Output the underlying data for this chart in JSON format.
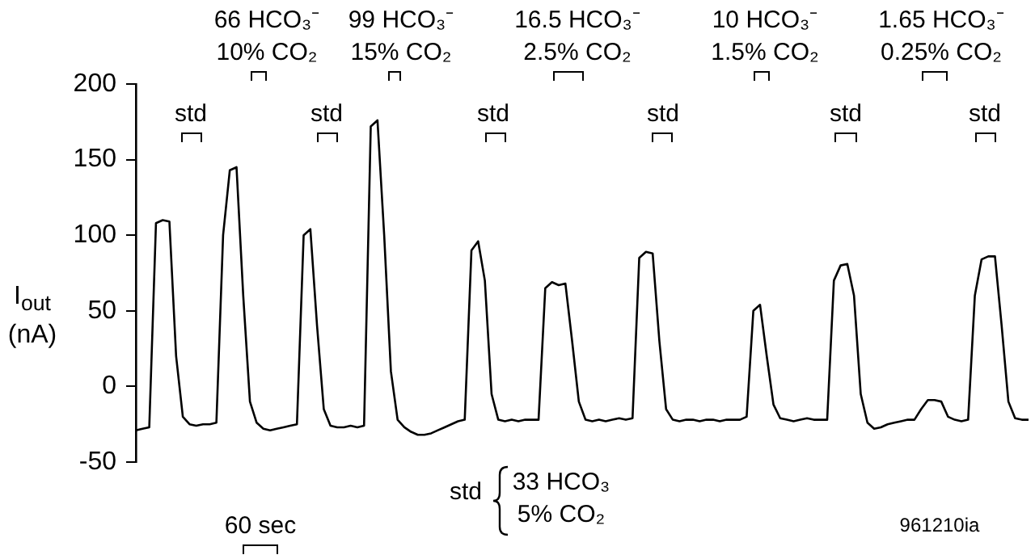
{
  "chart_data": {
    "type": "line",
    "ylabel": "I$_{out}$ (nA)",
    "categories": [
      null,
      null,
      null,
      null,
      null,
      null,
      null,
      null,
      null,
      null,
      null,
      null,
      null,
      null,
      null,
      null,
      null,
      null,
      null,
      null,
      null,
      null,
      null,
      null,
      null,
      null,
      null,
      null,
      null,
      null,
      null,
      null,
      null,
      null,
      null,
      null,
      null,
      null,
      null,
      null,
      null,
      null,
      null,
      null,
      null,
      null,
      null,
      null,
      null,
      null,
      null,
      null,
      null,
      null,
      null,
      null,
      null,
      null,
      null,
      null,
      null,
      null,
      null,
      null,
      null,
      null,
      null,
      null,
      null,
      null,
      null,
      null,
      null,
      null,
      null,
      null,
      null,
      null,
      null,
      null,
      null,
      null,
      null,
      null,
      null,
      null,
      null,
      null,
      null,
      null,
      null,
      null,
      null,
      null,
      null,
      null,
      null,
      null,
      null,
      null,
      null,
      null,
      null,
      null,
      null,
      null,
      null,
      null,
      null,
      null,
      null,
      null,
      null,
      null,
      null,
      null,
      null,
      null,
      null,
      null,
      null,
      null,
      null,
      null,
      null,
      null,
      null,
      null,
      null,
      null,
      null,
      null,
      null,
      null
    ],
    "series": [
      {
        "color": "#000000",
        "values": [
          -29,
          -28,
          -27,
          108,
          110,
          109,
          20,
          -20,
          -25,
          -26,
          -25,
          -25,
          -24,
          100,
          143,
          145,
          60,
          -10,
          -24,
          -28,
          -29,
          -28,
          -27,
          -26,
          -25,
          100,
          104,
          40,
          -15,
          -26,
          -27,
          -27,
          -26,
          -27,
          -26,
          172,
          176,
          100,
          10,
          -22,
          -27,
          -30,
          -32,
          -32,
          -31,
          -29,
          -27,
          -25,
          -23,
          -22,
          90,
          96,
          70,
          -5,
          -22,
          -23,
          -22,
          -23,
          -22,
          -22,
          -22,
          65,
          69,
          67,
          68,
          30,
          -10,
          -22,
          -23,
          -22,
          -23,
          -22,
          -21,
          -22,
          -21,
          85,
          89,
          88,
          30,
          -15,
          -22,
          -23,
          -22,
          -22,
          -23,
          -22,
          -22,
          -23,
          -22,
          -22,
          -22,
          -20,
          50,
          54,
          20,
          -12,
          -21,
          -22,
          -23,
          -22,
          -21,
          -22,
          -22,
          -22,
          70,
          80,
          81,
          60,
          -5,
          -24,
          -28,
          -27,
          -25,
          -24,
          -23,
          -22,
          -22,
          -15,
          -9,
          -9,
          -10,
          -20,
          -22,
          -23,
          -22,
          60,
          84,
          86,
          86,
          40,
          -10,
          -21,
          -22,
          -22
        ]
      }
    ],
    "ylim": [
      -50,
      200
    ],
    "yticks": [
      -50,
      0,
      50,
      100,
      150,
      200
    ],
    "grid": false,
    "legend": false,
    "marker": "none",
    "line_style": "solid",
    "annotations": [
      "66 HCO₃⁻\n10% CO₂",
      "99 HCO₃⁻\n15% CO₂",
      "16.5 HCO₃⁻\n2.5% CO₂",
      "10 HCO₃⁻\n1.5% CO₂",
      "1.65 HCO₃⁻\n0.25% CO₂",
      "std",
      "std",
      "std",
      "std",
      "std",
      "std",
      "std",
      "33 HCO₃\n5% CO₂",
      "60 sec",
      "961210ia"
    ]
  }
}
